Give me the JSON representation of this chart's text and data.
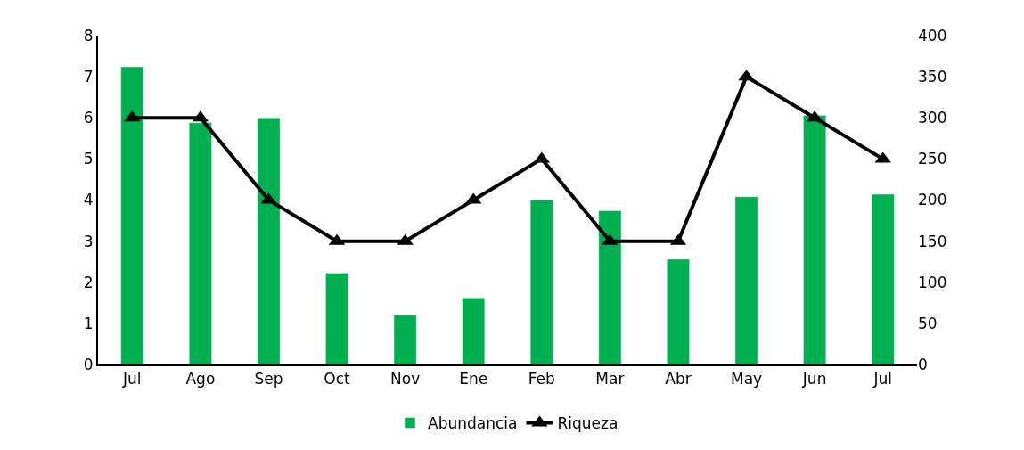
{
  "chart_data": {
    "type": "bar",
    "categories": [
      "Jul",
      "Ago",
      "Sep",
      "Oct",
      "Nov",
      "Ene",
      "Feb",
      "Mar",
      "Abr",
      "May",
      "Jun",
      "Jul"
    ],
    "series": [
      {
        "name": "Abundancia",
        "axis": "y2",
        "color": "#00b050",
        "values": [
          362,
          294,
          300,
          111,
          60,
          81,
          200,
          187,
          128,
          204,
          303,
          207
        ]
      },
      {
        "name": "Riqueza",
        "type": "line",
        "color": "#000000",
        "marker": "triangle",
        "values": [
          6,
          6,
          4,
          3,
          3,
          4,
          5,
          3,
          3,
          7,
          6,
          5
        ]
      }
    ],
    "ylim": [
      0,
      8
    ],
    "yticks": [
      0,
      1,
      2,
      3,
      4,
      5,
      6,
      7,
      8
    ],
    "y2lim": [
      0,
      400
    ],
    "y2ticks": [
      0,
      50,
      100,
      150,
      200,
      250,
      300,
      350,
      400
    ],
    "legend": "bottom"
  }
}
